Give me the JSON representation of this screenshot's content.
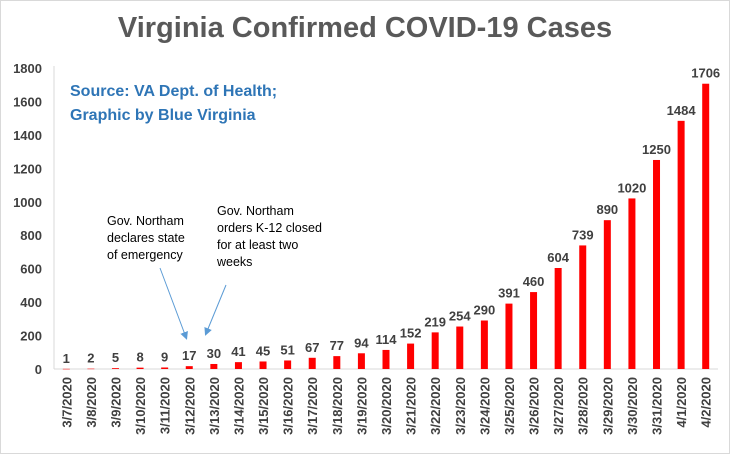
{
  "title": "Virginia Confirmed COVID-19 Cases",
  "source": {
    "line1": "Source: VA Dept. of Health;",
    "line2": "Graphic by Blue Virginia"
  },
  "annotations": [
    {
      "lines": [
        "Gov. Northam",
        "declares state",
        "of emergency"
      ],
      "points_to": "3/12/2020"
    },
    {
      "lines": [
        "Gov. Northam",
        "orders K-12 closed",
        "for at least two",
        "weeks"
      ],
      "points_to": "3/13/2020"
    }
  ],
  "colors": {
    "bar": "#ff0000",
    "title": "#595959",
    "source": "#2e75b6",
    "arrow": "#5b9bd5",
    "grid": "#d9d9d9"
  },
  "chart_data": {
    "type": "bar",
    "title": "Virginia Confirmed COVID-19 Cases",
    "xlabel": "",
    "ylabel": "",
    "ylim": [
      0,
      1800
    ],
    "yticks": [
      0,
      200,
      400,
      600,
      800,
      1000,
      1200,
      1400,
      1600,
      1800
    ],
    "grid": false,
    "categories": [
      "3/7/2020",
      "3/8/2020",
      "3/9/2020",
      "3/10/2020",
      "3/11/2020",
      "3/12/2020",
      "3/13/2020",
      "3/14/2020",
      "3/15/2020",
      "3/16/2020",
      "3/17/2020",
      "3/18/2020",
      "3/19/2020",
      "3/20/2020",
      "3/21/2020",
      "3/22/2020",
      "3/23/2020",
      "3/24/2020",
      "3/25/2020",
      "3/26/2020",
      "3/27/2020",
      "3/28/2020",
      "3/29/2020",
      "3/30/2020",
      "3/31/2020",
      "4/1/2020",
      "4/2/2020"
    ],
    "values": [
      1,
      2,
      5,
      8,
      9,
      17,
      30,
      41,
      45,
      51,
      67,
      77,
      94,
      114,
      152,
      219,
      254,
      290,
      391,
      460,
      604,
      739,
      890,
      1020,
      1250,
      1484,
      1706
    ]
  }
}
